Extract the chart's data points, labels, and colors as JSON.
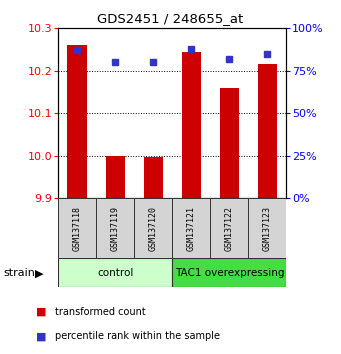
{
  "title": "GDS2451 / 248655_at",
  "samples": [
    "GSM137118",
    "GSM137119",
    "GSM137120",
    "GSM137121",
    "GSM137122",
    "GSM137123"
  ],
  "transformed_counts": [
    10.26,
    10.0,
    9.997,
    10.245,
    10.16,
    10.215
  ],
  "percentile_ranks": [
    87,
    80,
    80,
    88,
    82,
    85
  ],
  "ymin": 9.9,
  "ymax": 10.3,
  "y_ticks": [
    9.9,
    10.0,
    10.1,
    10.2,
    10.3
  ],
  "y_right_ticks": [
    0,
    25,
    50,
    75,
    100
  ],
  "bar_color": "#cc0000",
  "dot_color": "#3333cc",
  "bar_bottom": 9.9,
  "groups": [
    {
      "label": "control",
      "indices": [
        0,
        1,
        2
      ],
      "color": "#ccffcc"
    },
    {
      "label": "TAC1 overexpressing",
      "indices": [
        3,
        4,
        5
      ],
      "color": "#44dd44"
    }
  ],
  "fig_width": 3.41,
  "fig_height": 3.54,
  "dpi": 100
}
